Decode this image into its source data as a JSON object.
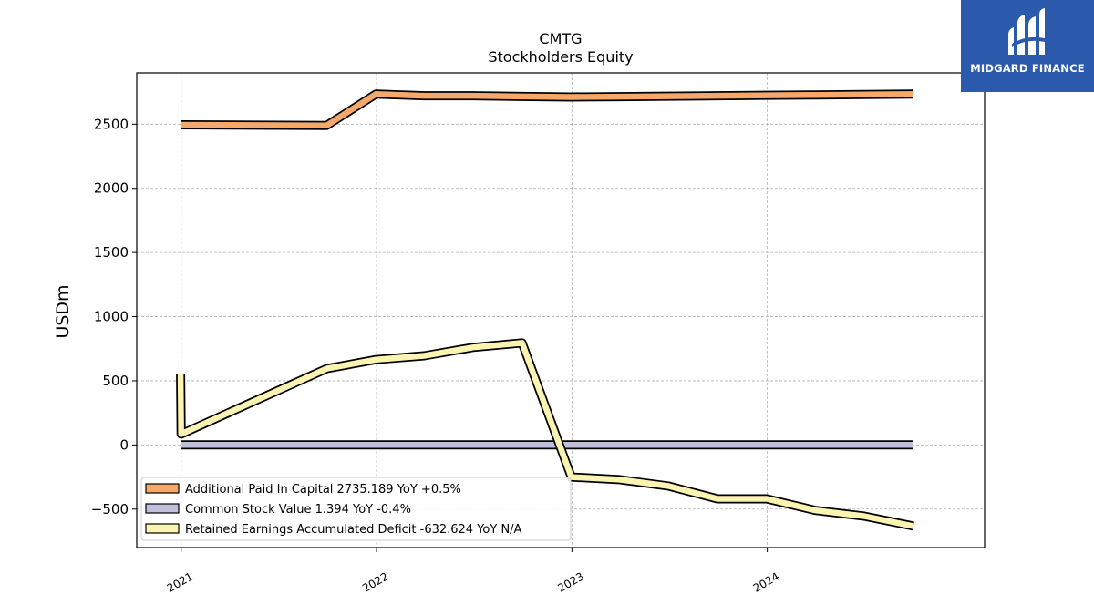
{
  "chart_data": {
    "type": "line",
    "title": "CMTG",
    "subtitle": "Stockholders  Equity",
    "ylabel": "USDm",
    "xlabel": "",
    "ylim": [
      -800,
      2900
    ],
    "xlim": [
      "2020-10-10",
      "2025-02-10"
    ],
    "yticks": [
      -500,
      0,
      500,
      1000,
      1500,
      2000,
      2500
    ],
    "ytick_labels": [
      "−500",
      "0",
      "500",
      "1000",
      "1500",
      "2000",
      "2500"
    ],
    "xticks": [
      "2021-01-01",
      "2022-01-01",
      "2023-01-01",
      "2024-01-01"
    ],
    "xtick_labels": [
      "2021",
      "2022",
      "2023",
      "2024"
    ],
    "grid": true,
    "legend_position": "lower-left",
    "series": [
      {
        "name": "Additional Paid In Capital",
        "legend_label": "Additional Paid In Capital  2735.189 YoY +0.5%",
        "color": "#f5a86a",
        "x": [
          "2020-12-31",
          "2021-09-30",
          "2021-12-31",
          "2022-03-31",
          "2022-06-30",
          "2022-09-30",
          "2022-12-31",
          "2023-03-31",
          "2023-06-30",
          "2023-09-30",
          "2023-12-31",
          "2024-03-31",
          "2024-06-30",
          "2024-09-30"
        ],
        "values": [
          2495,
          2490,
          2735,
          2722,
          2722,
          2716,
          2712,
          2715,
          2718,
          2722,
          2725,
          2728,
          2731,
          2735.189
        ]
      },
      {
        "name": "Common Stock Value",
        "legend_label": "Common Stock Value  1.394 YoY -0.4%",
        "color": "#c0c0dc",
        "x": [
          "2020-12-31",
          "2024-09-30"
        ],
        "values": [
          1.4,
          1.394
        ]
      },
      {
        "name": "Retained Earnings Accumulated Deficit",
        "legend_label": "Retained Earnings Accumulated Deficit  -632.624 YoY N/A",
        "color": "#fbf3b0",
        "x": [
          "2020-12-31",
          "2021-01-01",
          "2021-09-30",
          "2021-12-31",
          "2022-03-31",
          "2022-06-30",
          "2022-09-30",
          "2022-12-31",
          "2023-03-31",
          "2023-06-30",
          "2023-09-30",
          "2023-12-31",
          "2024-03-31",
          "2024-06-30",
          "2024-09-30"
        ],
        "values": [
          550,
          85,
          595,
          665,
          695,
          760,
          795,
          -250,
          -270,
          -320,
          -420,
          -420,
          -510,
          -555,
          -632.624
        ]
      }
    ]
  },
  "logo": {
    "text": "MIDGARD FINANCE",
    "background": "#2b5aad"
  }
}
